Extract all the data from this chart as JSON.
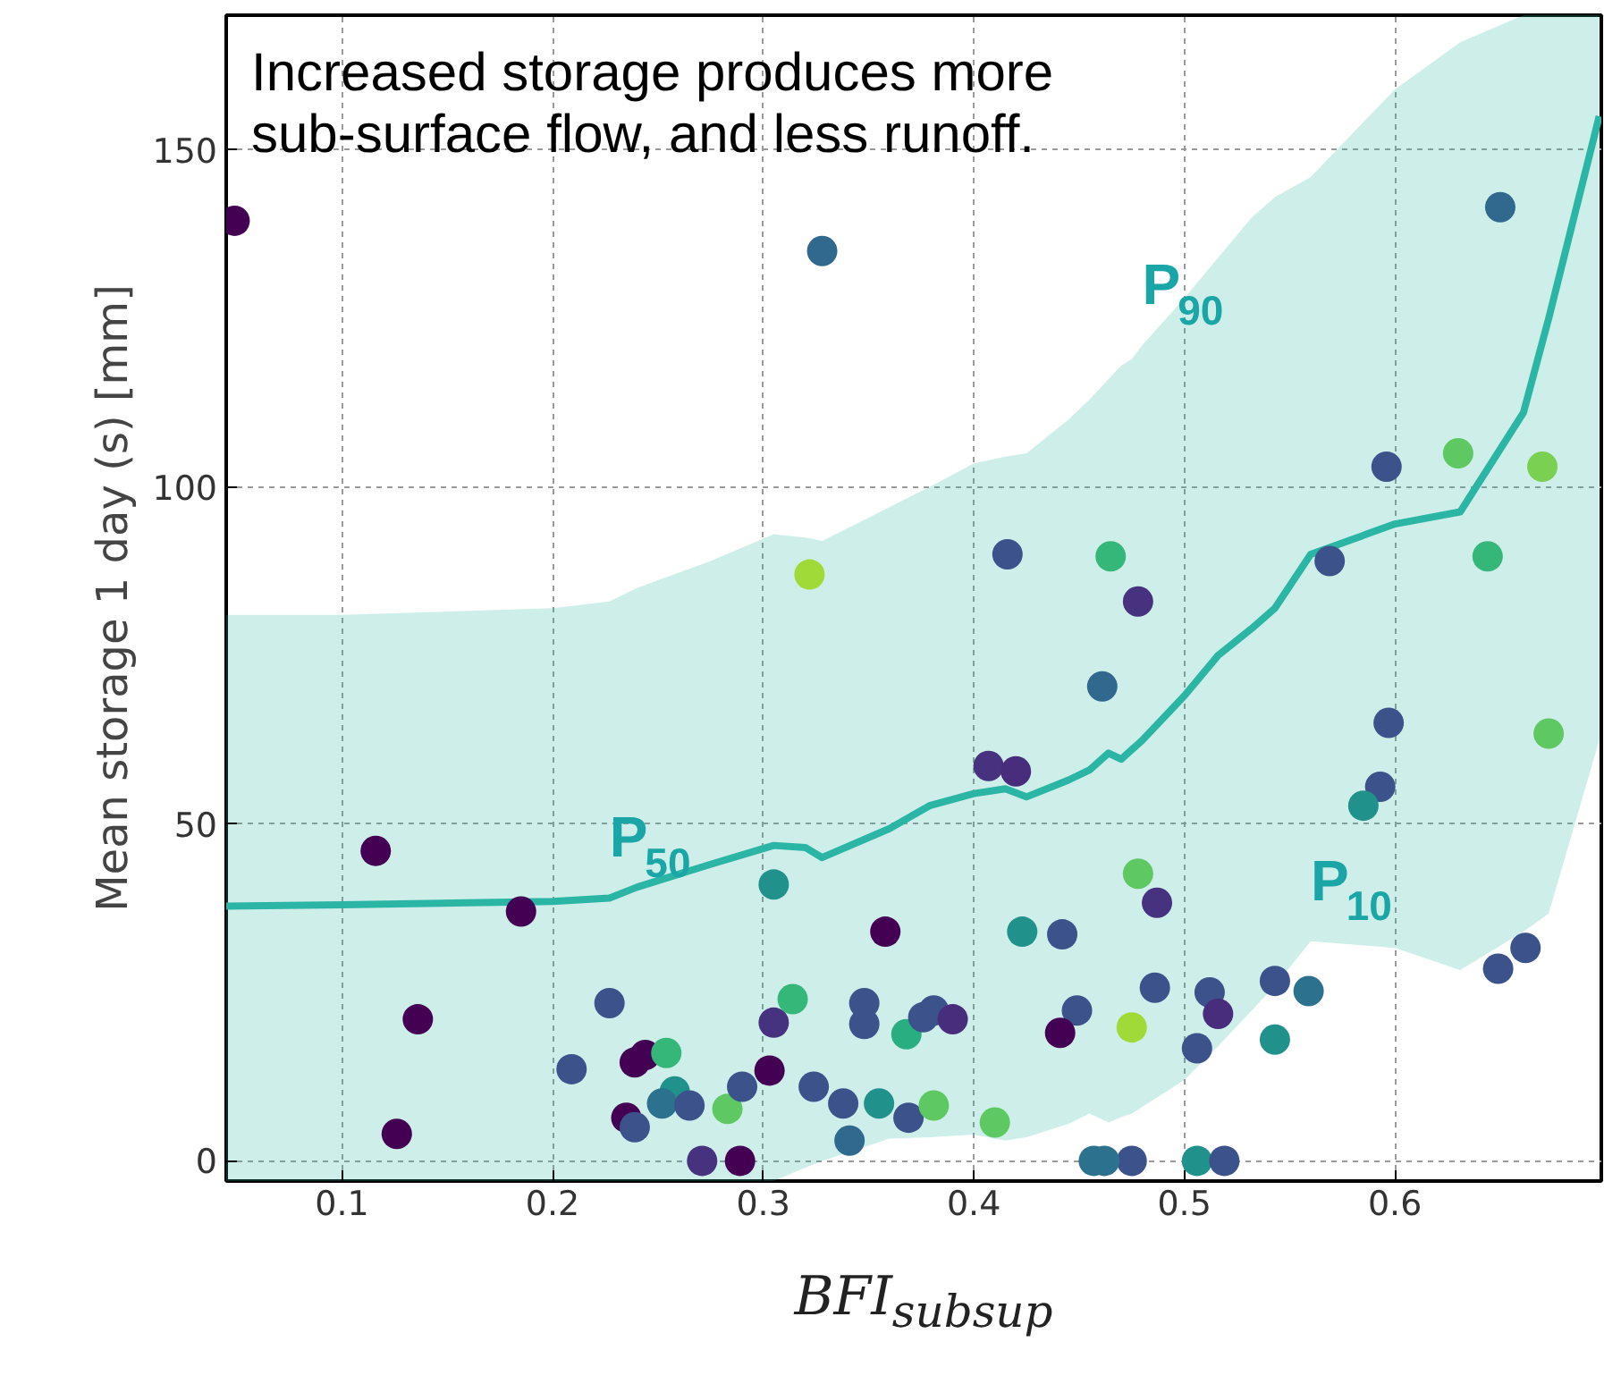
{
  "chart_data": {
    "type": "scatter",
    "xlabel": "BFI$_{subsup}$",
    "ylabel": "Mean storage 1 day (s) [mm]",
    "xlim": [
      0.045,
      0.698
    ],
    "ylim": [
      -3,
      170
    ],
    "xticks": [
      0.1,
      0.2,
      0.3,
      0.4,
      0.5,
      0.6
    ],
    "yticks": [
      0,
      50,
      100,
      150
    ],
    "grid": true,
    "annotations": [
      "Increased storage produces more\nsub-surface flow, and less runoff.",
      {
        "text": "P$_{90}$",
        "x": 0.48,
        "y": 121
      },
      {
        "text": "P$_{50}$",
        "x": 0.227,
        "y": 39
      },
      {
        "text": "P$_{10}$",
        "x": 0.56,
        "y": 32.6
      }
    ],
    "series": [
      {
        "type": "line",
        "color": "#2bb5a5",
        "marker": "none",
        "x": [
          0.045,
          0.1,
          0.2,
          0.227,
          0.24,
          0.275,
          0.305,
          0.32,
          0.328,
          0.36,
          0.379,
          0.4,
          0.415,
          0.425,
          0.445,
          0.455,
          0.464,
          0.47,
          0.475,
          0.48,
          0.5,
          0.516,
          0.532,
          0.543,
          0.56,
          0.6,
          0.631,
          0.661,
          0.673,
          0.697
        ],
        "values": [
          37.8,
          38,
          38.5,
          39,
          40.6,
          44,
          46.8,
          46.5,
          45,
          49.3,
          52.7,
          54.5,
          55.2,
          54,
          56.5,
          58,
          60.5,
          59.6,
          61,
          62.4,
          69,
          75,
          79,
          82,
          90,
          94.5,
          96.3,
          111,
          125,
          155
        ],
        "lower": [
          -3,
          -3,
          -3,
          -3,
          -3,
          -3,
          -3,
          -1,
          0,
          3.3,
          3.5,
          3.9,
          3,
          3.5,
          5.5,
          7,
          5.7,
          6.5,
          7,
          8,
          12,
          17,
          22.3,
          26,
          32.6,
          31.6,
          28.3,
          34,
          36.7,
          62.4
        ],
        "upper": [
          81,
          81,
          82,
          83,
          85,
          89,
          93,
          92.5,
          92,
          97,
          100,
          103.5,
          104.5,
          105,
          110,
          113,
          116,
          118,
          119,
          121,
          128,
          134,
          140,
          143,
          146,
          159,
          166,
          170,
          170,
          170
        ]
      },
      {
        "marker": "circle",
        "x": [
          0.049,
          0.328,
          0.322,
          0.65,
          0.596,
          0.63,
          0.67,
          0.416,
          0.465,
          0.478,
          0.569,
          0.644,
          0.461,
          0.116,
          0.185,
          0.136,
          0.126,
          0.305,
          0.358,
          0.227,
          0.209,
          0.239,
          0.244,
          0.254,
          0.235,
          0.239,
          0.258,
          0.252,
          0.265,
          0.271,
          0.289,
          0.283,
          0.29,
          0.303,
          0.305,
          0.314,
          0.324,
          0.338,
          0.341,
          0.348,
          0.348,
          0.355,
          0.368,
          0.369,
          0.376,
          0.407,
          0.42,
          0.597,
          0.593,
          0.585,
          0.673,
          0.478,
          0.487,
          0.423,
          0.442,
          0.486,
          0.512,
          0.516,
          0.543,
          0.559,
          0.662,
          0.649,
          0.543,
          0.506,
          0.475,
          0.449,
          0.441,
          0.381,
          0.39,
          0.381,
          0.41,
          0.457,
          0.475,
          0.506,
          0.519,
          0.462
        ],
        "values": [
          139.5,
          135,
          87,
          141.5,
          103,
          105,
          103,
          90,
          89.7,
          83,
          89,
          89.7,
          70.4,
          46,
          37,
          21,
          4,
          41,
          34,
          23.4,
          13.6,
          14.6,
          15.7,
          16,
          6.4,
          5,
          10.3,
          8.5,
          8.2,
          0,
          0,
          7.7,
          11,
          13.4,
          20.5,
          24,
          11,
          8.5,
          3,
          23.4,
          20.3,
          8.5,
          18.8,
          6.4,
          21.3,
          58.6,
          57.8,
          65,
          55.5,
          52.7,
          63.4,
          42.6,
          38.3,
          34,
          33.6,
          25.7,
          25,
          21.8,
          26.7,
          25.2,
          31.6,
          28.5,
          18,
          16.7,
          19.8,
          22.3,
          19,
          22.3,
          21,
          8.2,
          5.7,
          0,
          0,
          0,
          0,
          0
        ],
        "colors": [
          "#440154",
          "#31688e",
          "#a0da39",
          "#31688e",
          "#3b528b",
          "#5ec962",
          "#7ad151",
          "#3b528b",
          "#35b779",
          "#46327e",
          "#3b528b",
          "#35b779",
          "#31688e",
          "#440154",
          "#440154",
          "#440154",
          "#440154",
          "#21918c",
          "#440154",
          "#3b528b",
          "#3b528b",
          "#440154",
          "#440154",
          "#35b779",
          "#440154",
          "#3b528b",
          "#21918c",
          "#2c728e",
          "#3b528b",
          "#46327e",
          "#440154",
          "#5ec962",
          "#3b528b",
          "#440154",
          "#46327e",
          "#35b779",
          "#3b528b",
          "#3b528b",
          "#31688e",
          "#3b528b",
          "#3b528b",
          "#21918c",
          "#28ae80",
          "#3b528b",
          "#3b528b",
          "#46327e",
          "#472d7b",
          "#3b528b",
          "#3b528b",
          "#21918c",
          "#5ec962",
          "#5ec962",
          "#46327e",
          "#21918c",
          "#3b528b",
          "#3b528b",
          "#3b528b",
          "#472d7b",
          "#3b528b",
          "#2c728e",
          "#3b528b",
          "#3b528b",
          "#21918c",
          "#3b528b",
          "#a0da39",
          "#3b528b",
          "#440154",
          "#3b528b",
          "#472d7b",
          "#5ec962",
          "#5ec962",
          "#2c728e",
          "#3b528b",
          "#21918c",
          "#3b528b",
          "#2c728e"
        ]
      }
    ]
  }
}
